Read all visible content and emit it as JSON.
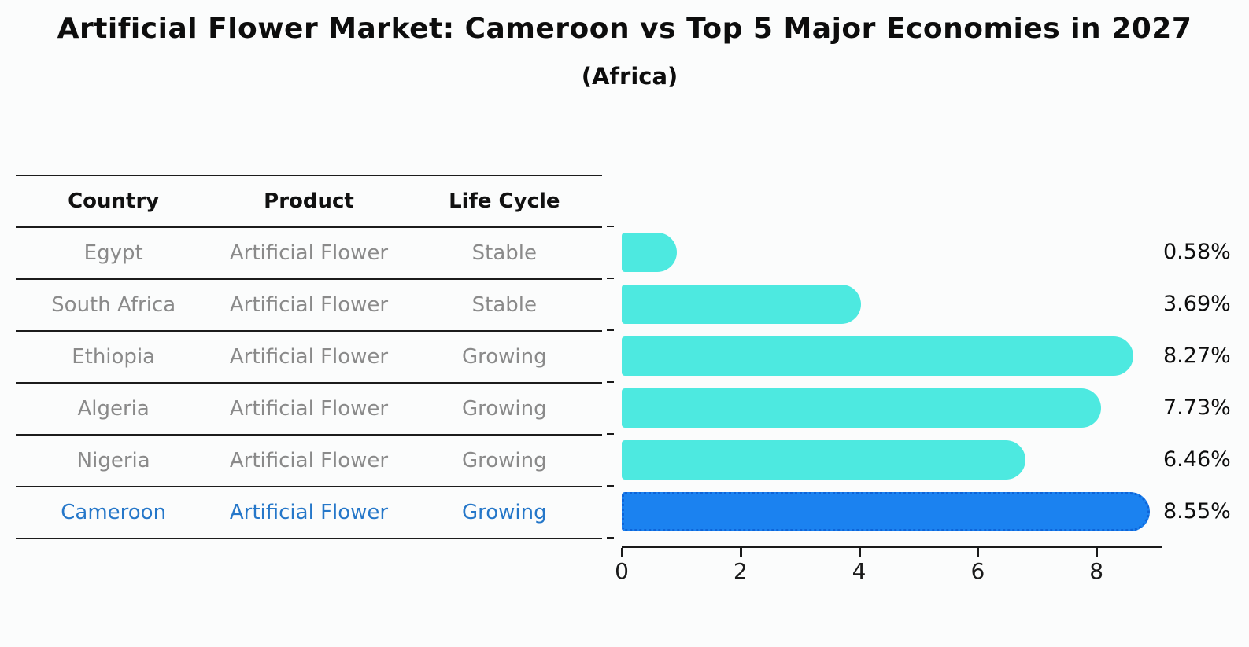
{
  "title": "Artificial Flower Market: Cameroon vs Top 5 Major Economies in 2027",
  "subtitle": "(Africa)",
  "table": {
    "headers": [
      "Country",
      "Product",
      "Life Cycle"
    ],
    "rows": [
      {
        "country": "Egypt",
        "product": "Artificial Flower",
        "life_cycle": "Stable",
        "highlight": false
      },
      {
        "country": "South Africa",
        "product": "Artificial Flower",
        "life_cycle": "Stable",
        "highlight": false
      },
      {
        "country": "Ethiopia",
        "product": "Artificial Flower",
        "life_cycle": "Growing",
        "highlight": false
      },
      {
        "country": "Algeria",
        "product": "Artificial Flower",
        "life_cycle": "Growing",
        "highlight": false
      },
      {
        "country": "Nigeria",
        "product": "Artificial Flower",
        "life_cycle": "Growing",
        "highlight": false
      },
      {
        "country": "Cameroon",
        "product": "Artificial Flower",
        "life_cycle": "Growing",
        "highlight": true
      }
    ]
  },
  "chart_data": {
    "type": "bar",
    "orientation": "horizontal",
    "title": "Artificial Flower Market: Cameroon vs Top 5 Major Economies in 2027",
    "subtitle": "(Africa)",
    "categories": [
      "Egypt",
      "South Africa",
      "Ethiopia",
      "Algeria",
      "Nigeria",
      "Cameroon"
    ],
    "values": [
      0.58,
      3.69,
      8.27,
      7.73,
      6.46,
      8.55
    ],
    "value_labels": [
      "0.58%",
      "3.69%",
      "8.27%",
      "7.73%",
      "6.46%",
      "8.55%"
    ],
    "x_ticks": [
      0,
      2,
      4,
      6,
      8
    ],
    "xlim": [
      0,
      9.1
    ],
    "grid": false,
    "legend": false,
    "bar_color": "#4DE9E0",
    "highlight_index": 5,
    "highlight_color": "#1B82F0"
  },
  "colors": {
    "table_text": "#8a8a8a",
    "table_highlight_text": "#2577c9",
    "heading_text": "#111111",
    "axis": "#1a1a1a"
  }
}
